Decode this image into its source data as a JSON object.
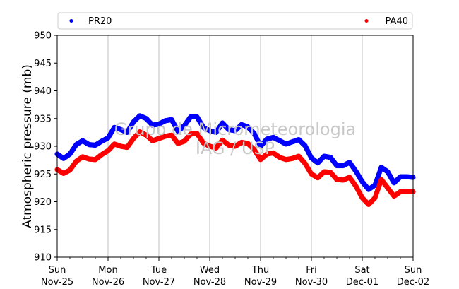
{
  "chart_data": {
    "type": "scatter",
    "ylabel": "Atmospheric pressure (mb)",
    "ylim": [
      910,
      950
    ],
    "yticks": [
      910,
      915,
      920,
      925,
      930,
      935,
      940,
      945,
      950
    ],
    "xlim": [
      "2018-11-25T00:00",
      "2018-12-02T00:00"
    ],
    "xticks": [
      {
        "day": "Sun",
        "date": "Nov-25"
      },
      {
        "day": "Mon",
        "date": "Nov-26"
      },
      {
        "day": "Tue",
        "date": "Nov-27"
      },
      {
        "day": "Wed",
        "date": "Nov-28"
      },
      {
        "day": "Thu",
        "date": "Nov-29"
      },
      {
        "day": "Fri",
        "date": "Nov-30"
      },
      {
        "day": "Sat",
        "date": "Dec-01"
      },
      {
        "day": "Sun",
        "date": "Dec-02"
      }
    ],
    "grid": "vertical",
    "legend": "top",
    "watermark": [
      "Grupo de Micrometeorologia",
      "IAG / USP"
    ],
    "x": [
      "2018-11-25T00:00",
      "2018-11-25T03:00",
      "2018-11-25T06:00",
      "2018-11-25T09:00",
      "2018-11-25T12:00",
      "2018-11-25T15:00",
      "2018-11-25T18:00",
      "2018-11-25T21:00",
      "2018-11-26T00:00",
      "2018-11-26T03:00",
      "2018-11-26T06:00",
      "2018-11-26T09:00",
      "2018-11-26T12:00",
      "2018-11-26T15:00",
      "2018-11-26T18:00",
      "2018-11-26T21:00",
      "2018-11-27T00:00",
      "2018-11-27T03:00",
      "2018-11-27T06:00",
      "2018-11-27T09:00",
      "2018-11-27T12:00",
      "2018-11-27T15:00",
      "2018-11-27T18:00",
      "2018-11-27T21:00",
      "2018-11-28T00:00",
      "2018-11-28T03:00",
      "2018-11-28T06:00",
      "2018-11-28T09:00",
      "2018-11-28T12:00",
      "2018-11-28T15:00",
      "2018-11-28T18:00",
      "2018-11-28T21:00",
      "2018-11-29T00:00",
      "2018-11-29T03:00",
      "2018-11-29T06:00",
      "2018-11-29T09:00",
      "2018-11-29T12:00",
      "2018-11-29T15:00",
      "2018-11-29T18:00",
      "2018-11-29T21:00",
      "2018-11-30T00:00",
      "2018-11-30T03:00",
      "2018-11-30T06:00",
      "2018-11-30T09:00",
      "2018-11-30T12:00",
      "2018-11-30T15:00",
      "2018-11-30T18:00",
      "2018-11-30T21:00",
      "2018-12-01T00:00",
      "2018-12-01T03:00",
      "2018-12-01T06:00",
      "2018-12-01T09:00",
      "2018-12-01T12:00",
      "2018-12-01T15:00",
      "2018-12-01T18:00",
      "2018-12-01T21:00",
      "2018-12-02T00:00"
    ],
    "series": [
      {
        "name": "PR20",
        "color": "#0000ff",
        "values": [
          928.6,
          927.8,
          928.6,
          930.3,
          931.0,
          930.3,
          930.2,
          930.9,
          931.5,
          933.4,
          933.0,
          932.5,
          934.4,
          935.5,
          935.0,
          933.8,
          934.0,
          934.6,
          934.8,
          932.7,
          933.7,
          935.3,
          935.3,
          933.4,
          932.8,
          932.5,
          934.2,
          933.0,
          932.8,
          933.9,
          933.5,
          932.3,
          930.0,
          931.3,
          931.6,
          931.0,
          930.4,
          930.8,
          931.2,
          930.1,
          927.9,
          927.0,
          928.2,
          928.0,
          926.5,
          926.5,
          927.1,
          925.5,
          923.6,
          922.2,
          923.0,
          926.2,
          925.4,
          923.4,
          924.5,
          924.5,
          924.4
        ]
      },
      {
        "name": "PA40",
        "color": "#ff0000",
        "values": [
          925.8,
          925.1,
          925.7,
          927.3,
          928.1,
          927.7,
          927.6,
          928.5,
          929.2,
          930.4,
          930.0,
          929.8,
          931.4,
          932.6,
          932.0,
          931.0,
          931.4,
          931.8,
          932.0,
          930.5,
          930.9,
          932.2,
          932.3,
          930.6,
          930.0,
          929.7,
          931.1,
          930.2,
          930.0,
          930.7,
          930.5,
          929.4,
          927.6,
          928.6,
          928.8,
          928.0,
          927.6,
          927.8,
          928.2,
          926.9,
          925.0,
          924.3,
          925.4,
          925.3,
          924.0,
          923.9,
          924.4,
          922.8,
          920.7,
          919.5,
          920.7,
          924.0,
          922.5,
          921.0,
          921.8,
          921.8,
          921.8
        ]
      }
    ]
  }
}
